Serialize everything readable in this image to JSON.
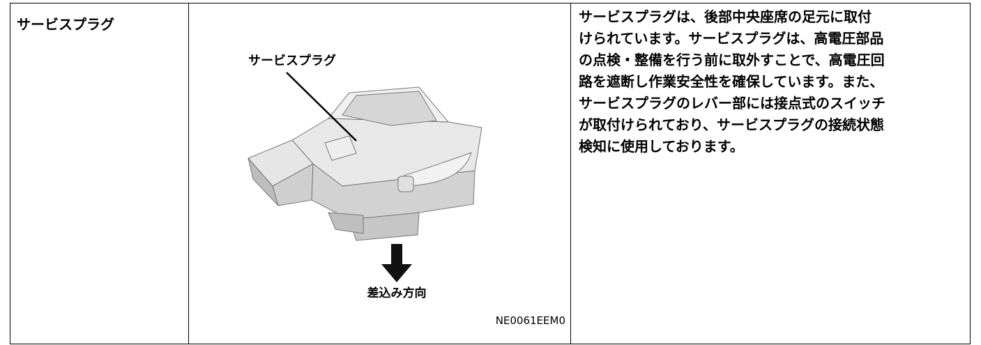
{
  "row": {
    "label": "サービスプラグ",
    "figure": {
      "callout": "サービスプラグ",
      "arrow_label": "差込み方向",
      "code": "NE0061EEM0"
    },
    "description": [
      "サービスプラグは、後部中央座席の足元に取付",
      "けられています。サービスプラグは、高電圧部品",
      "の点検・整備を行う前に取外すことで、高電圧回",
      "路を遮断し作業安全性を確保しています。また、",
      "サービスプラグのレバー部には接点式のスイッチ",
      "が取付けられており、サービスプラグの接続状態",
      "検知に使用しております。"
    ]
  }
}
